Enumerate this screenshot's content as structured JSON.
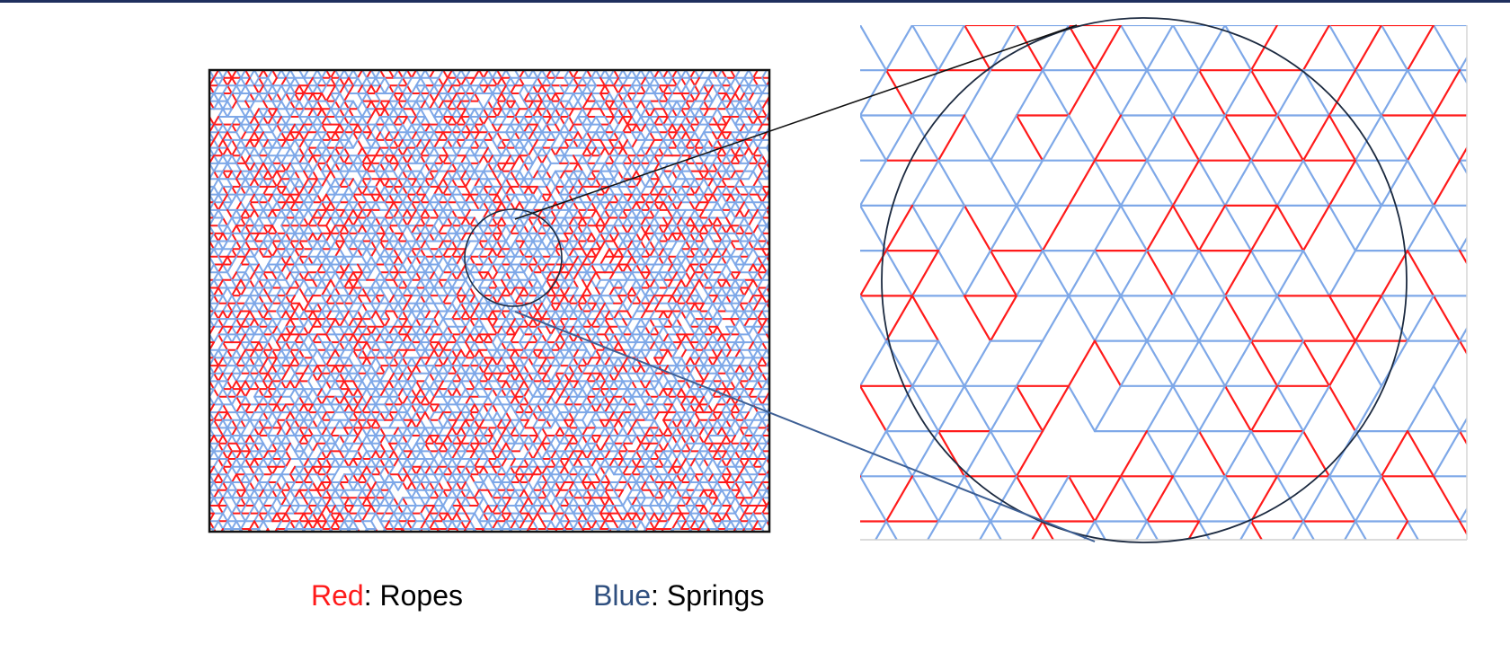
{
  "colors": {
    "rope": "#ff1a1a",
    "spring": "#7ea8e8",
    "frame": "#111111",
    "zoom_circle": "#1c2a40",
    "top_bar": "#1f2f5e",
    "legend_blue_word": "#2f4f7f"
  },
  "legend": {
    "ropes_color_word": "Red",
    "ropes_rest": ": Ropes",
    "springs_color_word": "Blue",
    "springs_rest": ": Springs"
  },
  "network": {
    "edge_types": [
      "rope",
      "spring"
    ],
    "rope_fraction": 0.3,
    "lattice": "triangular"
  }
}
